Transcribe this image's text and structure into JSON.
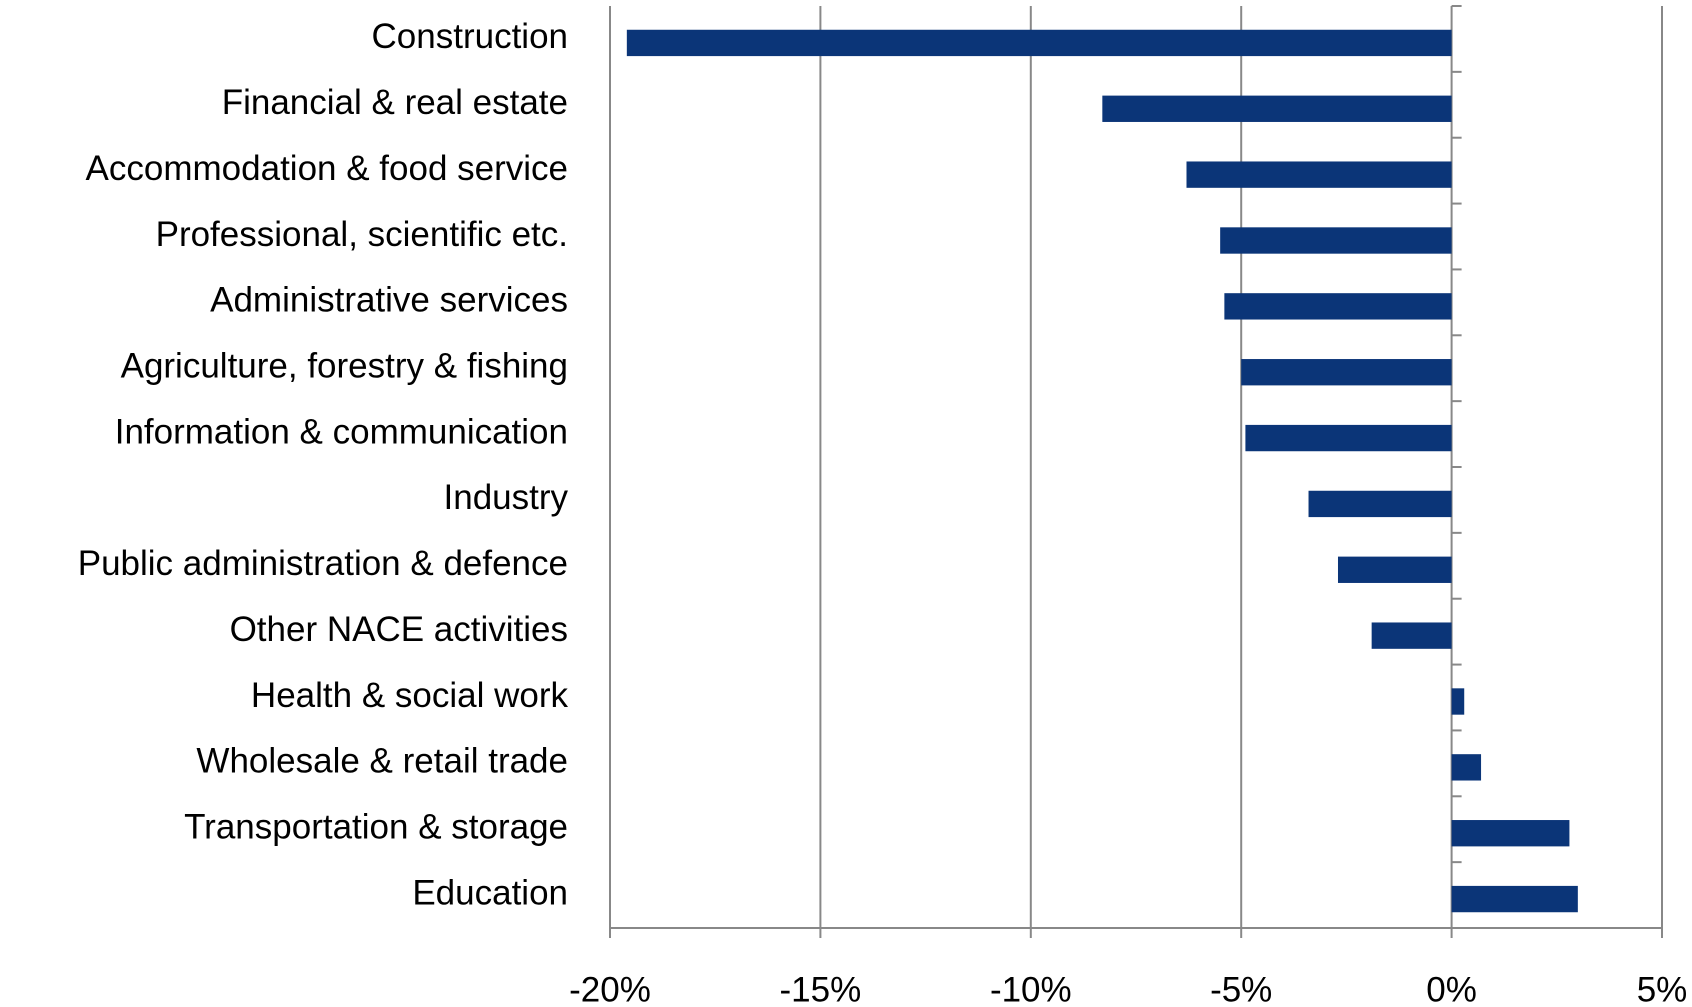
{
  "chart_data": {
    "type": "bar",
    "orientation": "horizontal",
    "categories": [
      "Construction",
      "Financial & real estate",
      "Accommodation & food service",
      "Professional, scientific etc.",
      "Administrative services",
      "Agriculture, forestry & fishing",
      "Information & communication",
      "Industry",
      "Public administration & defence",
      "Other NACE activities",
      "Health & social work",
      "Wholesale & retail trade",
      "Transportation & storage",
      "Education"
    ],
    "values": [
      -19.6,
      -8.3,
      -6.3,
      -5.5,
      -5.4,
      -5.0,
      -4.9,
      -3.4,
      -2.7,
      -1.9,
      0.3,
      0.7,
      2.8,
      3.0
    ],
    "color": "#0b3578",
    "xlim": [
      -20,
      5
    ],
    "xticks": [
      {
        "value": -20,
        "label": "-20%"
      },
      {
        "value": -15,
        "label": "-15%"
      },
      {
        "value": -10,
        "label": "-10%"
      },
      {
        "value": -5,
        "label": "-5%"
      },
      {
        "value": 0,
        "label": "0%"
      },
      {
        "value": 5,
        "label": "5%"
      }
    ],
    "grid": true
  }
}
